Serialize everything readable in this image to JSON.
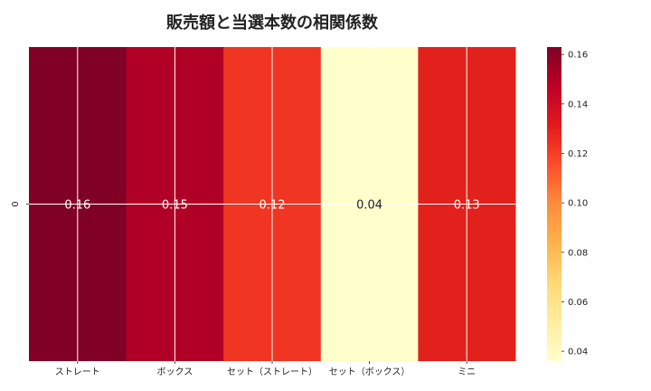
{
  "chart_data": {
    "type": "heatmap",
    "title": "販売額と当選本数の相関係数",
    "row_labels": [
      "0"
    ],
    "categories": [
      "ストレート",
      "ボックス",
      "セット（ストレート）",
      "セット（ボックス）",
      "ミニ"
    ],
    "values": [
      [
        0.16,
        0.15,
        0.12,
        0.04,
        0.13
      ]
    ],
    "cell_labels": [
      "0.16",
      "0.15",
      "0.12",
      "0.04",
      "0.13"
    ],
    "colorbar": {
      "min": 0.036,
      "max": 0.163,
      "ticks": [
        "0.04",
        "0.06",
        "0.08",
        "0.10",
        "0.12",
        "0.14",
        "0.16"
      ],
      "tick_values": [
        0.04,
        0.06,
        0.08,
        0.1,
        0.12,
        0.14,
        0.16
      ],
      "colormap": "YlOrRd"
    },
    "cell_colors": [
      "#800026",
      "#b10026",
      "#f03523",
      "#ffffcc",
      "#e3211c"
    ],
    "grid": true
  }
}
